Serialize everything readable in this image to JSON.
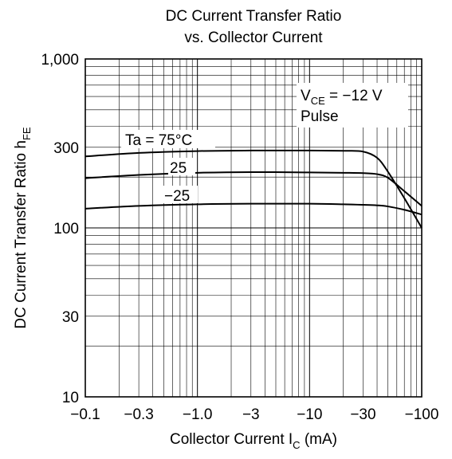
{
  "chart_data": {
    "type": "line",
    "title_line1": "DC Current Transfer Ratio",
    "title_line2": "vs. Collector Current",
    "xlabel_main": "Collector Current  I",
    "xlabel_sub": "C",
    "xlabel_unit": "  (mA)",
    "ylabel_main": "DC Current Transfer Ratio  h",
    "ylabel_sub": "FE",
    "x_scale": "log",
    "y_scale": "log",
    "xlim": [
      -0.1,
      -100
    ],
    "ylim": [
      10,
      1000
    ],
    "grid": true,
    "x_ticks": [
      {
        "value": -0.1,
        "label": "−0.1"
      },
      {
        "value": -0.3,
        "label": "−0.3"
      },
      {
        "value": -1.0,
        "label": "−1.0"
      },
      {
        "value": -3,
        "label": "−3"
      },
      {
        "value": -10,
        "label": "−10"
      },
      {
        "value": -30,
        "label": "−30"
      },
      {
        "value": -100,
        "label": "−100"
      }
    ],
    "y_ticks": [
      {
        "value": 10,
        "label": "10"
      },
      {
        "value": 30,
        "label": "30"
      },
      {
        "value": 100,
        "label": "100"
      },
      {
        "value": 300,
        "label": "300"
      },
      {
        "value": 1000,
        "label": "1,000"
      }
    ],
    "condition_main": "V",
    "condition_sub": "CE",
    "condition_rest": " = −12 V",
    "condition2": "Pulse",
    "series": [
      {
        "name": "Ta = 75°C",
        "x": [
          -0.1,
          -0.3,
          -1,
          -3,
          -10,
          -20,
          -30,
          -40,
          -50,
          -70,
          -100
        ],
        "y": [
          265,
          278,
          285,
          287,
          287,
          286,
          283,
          260,
          215,
          150,
          100
        ]
      },
      {
        "name": "25",
        "x": [
          -0.1,
          -0.3,
          -1,
          -3,
          -10,
          -20,
          -30,
          -40,
          -50,
          -70,
          -100
        ],
        "y": [
          197,
          206,
          212,
          214,
          213,
          212,
          211,
          208,
          198,
          165,
          135
        ]
      },
      {
        "name": "−25",
        "x": [
          -0.1,
          -0.3,
          -1,
          -3,
          -10,
          -20,
          -30,
          -40,
          -50,
          -70,
          -100
        ],
        "y": [
          130,
          135,
          138,
          139,
          139,
          138,
          137,
          136,
          134,
          128,
          120
        ]
      }
    ]
  }
}
